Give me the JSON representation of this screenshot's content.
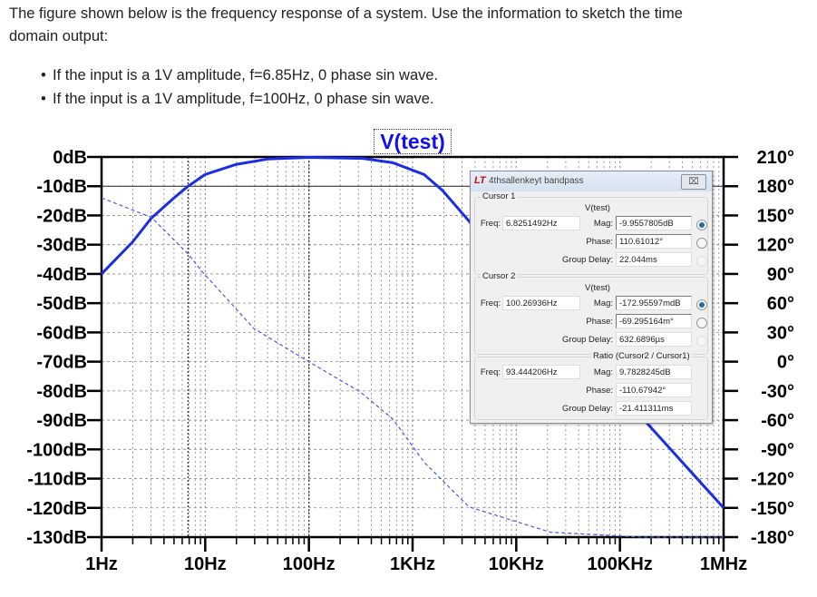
{
  "question": {
    "line1": "The figure shown below is the frequency response of a system. Use the information to sketch the time",
    "line2": "domain output:",
    "bullets": [
      "If the input is a 1V amplitude, f=6.85Hz, 0 phase sin wave.",
      "If the input is a 1V amplitude, f=100Hz, 0 phase sin wave."
    ]
  },
  "chart_data": {
    "type": "line",
    "title": "V(test)",
    "x_scale": "log",
    "xlim": [
      1,
      1000000
    ],
    "x_ticks": [
      1,
      10,
      100,
      1000,
      10000,
      100000,
      1000000
    ],
    "x_tick_labels": [
      "1Hz",
      "10Hz",
      "100Hz",
      "1KHz",
      "10KHz",
      "100KHz",
      "1MHz"
    ],
    "ylim_left": [
      -130,
      0
    ],
    "y_left_ticks": [
      0,
      -10,
      -20,
      -30,
      -40,
      -50,
      -60,
      -70,
      -80,
      -90,
      -100,
      -110,
      -120,
      -130
    ],
    "y_left_tick_labels": [
      "0dB",
      "-10dB",
      "-20dB",
      "-30dB",
      "-40dB",
      "-50dB",
      "-60dB",
      "-70dB",
      "-80dB",
      "-90dB",
      "-100dB",
      "-110dB",
      "-120dB",
      "-130dB"
    ],
    "ylim_right": [
      -180,
      210
    ],
    "y_right_ticks": [
      210,
      180,
      150,
      120,
      90,
      60,
      30,
      0,
      -30,
      -60,
      -90,
      -120,
      -150,
      -180
    ],
    "y_right_tick_labels": [
      "210°",
      "180°",
      "150°",
      "120°",
      "90°",
      "60°",
      "30°",
      "0°",
      "-30°",
      "-60°",
      "-90°",
      "-120°",
      "-150°",
      "-180°"
    ],
    "grid": true,
    "series": [
      {
        "axis": "left",
        "style": "solid",
        "color": "#1a2ee6",
        "x": [
          1,
          2,
          3,
          5,
          6.83,
          10,
          20,
          40,
          100,
          333,
          646,
          1290,
          1950,
          3720,
          10000,
          100000,
          182000,
          1000000
        ],
        "y": [
          -40,
          -29,
          -21,
          -14,
          -10,
          -6,
          -2.5,
          -0.7,
          -0.17,
          -0.5,
          -2,
          -6,
          -11.5,
          -23,
          -40,
          -80,
          -91,
          -120
        ]
      },
      {
        "axis": "right",
        "style": "dashed",
        "color": "#4a5ae6",
        "x": [
          1,
          3.03,
          6.83,
          9.4,
          29.5,
          100,
          312,
          647,
          1290,
          3500,
          21400,
          160000,
          1000000
        ],
        "y": [
          168,
          148,
          110.6,
          92,
          34,
          -0.07,
          -31,
          -59,
          -103,
          -149,
          -175,
          -180,
          -180
        ]
      }
    ],
    "cursors": [
      6.8251492,
      100.26936
    ],
    "cursor_levels_db": [
      -10,
      0
    ]
  },
  "dialog": {
    "title": "4thsallenkeyt bandpass",
    "logo": "LT",
    "close_label": "⌧",
    "cursor1": {
      "label": "Cursor 1",
      "trace": "V(test)",
      "freq_label": "Freq:",
      "freq": "6.8251492Hz",
      "mag_label": "Mag:",
      "mag": "-9.9557805dB",
      "phase_label": "Phase:",
      "phase": "110.61012°",
      "gd_label": "Group Delay:",
      "gd": "22.044ms"
    },
    "cursor2": {
      "label": "Cursor 2",
      "trace": "V(test)",
      "freq_label": "Freq:",
      "freq": "100.26936Hz",
      "mag_label": "Mag:",
      "mag": "-172.95597mdB",
      "phase_label": "Phase:",
      "phase": "-69.295164m°",
      "gd_label": "Group Delay:",
      "gd": "632.6896µs"
    },
    "ratio": {
      "label": "Ratio (Cursor2 / Cursor1)",
      "freq_label": "Freq:",
      "freq": "93.444206Hz",
      "mag_label": "Mag:",
      "mag": "9.7828245dB",
      "phase_label": "Phase:",
      "phase": "-110.67942°",
      "gd_label": "Group Delay:",
      "gd": "-21.411311ms"
    }
  }
}
